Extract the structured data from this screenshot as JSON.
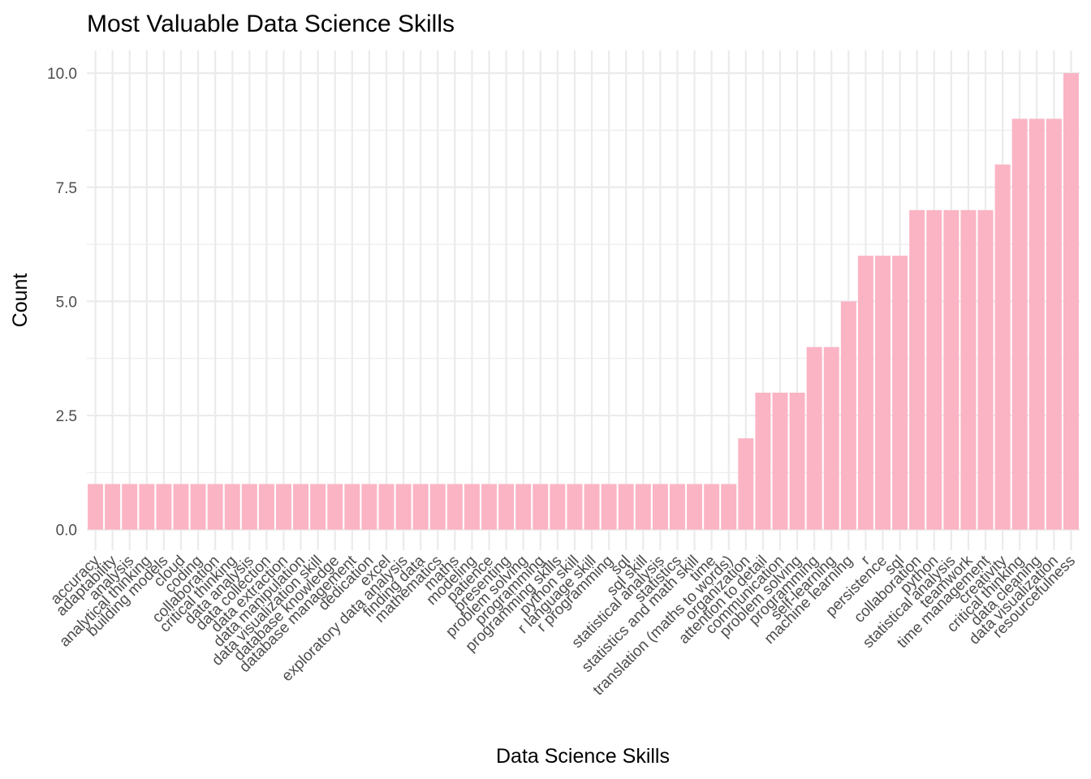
{
  "chart_data": {
    "type": "bar",
    "title": "Most Valuable Data Science Skills",
    "xlabel": "Data Science Skills",
    "ylabel": "Count",
    "ylim": [
      -0.45,
      10.5
    ],
    "yticks": [
      "0.0",
      "2.5",
      "5.0",
      "7.5",
      "10.0"
    ],
    "grid": true,
    "bar_color": "#fbb4c4",
    "categories": [
      "accuracy",
      "adaptability",
      "analysis",
      "analytical thinking",
      "building models",
      "cloud",
      "coding",
      "collaboration",
      "critical thinking",
      "data analysis",
      "data collection",
      "data extraction",
      "data manipulation",
      "data visualization skill",
      "database knowledge",
      "database management",
      "dedication",
      "excel",
      "exploratory data analysis",
      "finding data",
      "mathematics",
      "maths",
      "modeling",
      "patience",
      "presenting",
      "problem solving",
      "programming",
      "programming skills",
      "python skill",
      "r language skill",
      "r programming",
      "sql",
      "sql skill",
      "statistical analysis",
      "statistics",
      "statistics and math skill",
      "time",
      "translation (maths to words)",
      "organization",
      "attention to detail",
      "communication",
      "problem solving",
      "programming",
      "self-learning",
      "machine learning",
      "r",
      "persistence",
      "sql",
      "collaboration",
      "python",
      "statistical analysis",
      "teamwork",
      "time management",
      "creativity",
      "critical thinking",
      "data cleaning",
      "data visualization",
      "resourcefulness"
    ],
    "values": [
      1,
      1,
      1,
      1,
      1,
      1,
      1,
      1,
      1,
      1,
      1,
      1,
      1,
      1,
      1,
      1,
      1,
      1,
      1,
      1,
      1,
      1,
      1,
      1,
      1,
      1,
      1,
      1,
      1,
      1,
      1,
      1,
      1,
      1,
      1,
      1,
      1,
      1,
      2,
      3,
      3,
      3,
      4,
      4,
      5,
      6,
      6,
      6,
      7,
      7,
      7,
      7,
      7,
      8,
      9,
      9,
      9,
      10
    ]
  }
}
